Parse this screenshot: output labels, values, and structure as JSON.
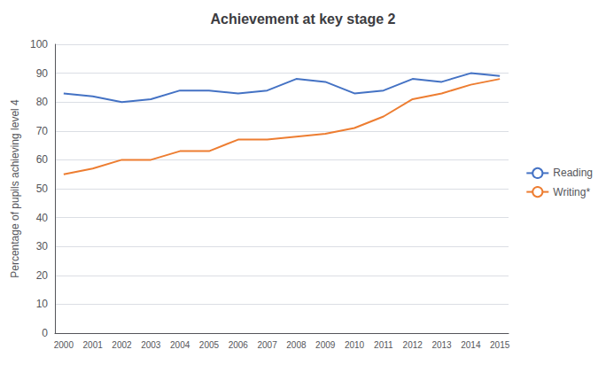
{
  "chart_data": {
    "type": "line",
    "title": "Achievement at key stage 2",
    "ylabel": "Percentage of pupils achieving level 4",
    "x": [
      2000,
      2001,
      2002,
      2003,
      2004,
      2005,
      2006,
      2007,
      2008,
      2009,
      2010,
      2011,
      2012,
      2013,
      2014,
      2015
    ],
    "series": [
      {
        "name": "Reading",
        "color": "#4472C4",
        "values": [
          83,
          82,
          80,
          81,
          84,
          84,
          83,
          84,
          88,
          87,
          83,
          84,
          88,
          87,
          90,
          89
        ]
      },
      {
        "name": "Writing*",
        "color": "#ED7D31",
        "values": [
          55,
          57,
          60,
          60,
          63,
          63,
          67,
          67,
          68,
          69,
          71,
          75,
          81,
          83,
          86,
          88
        ]
      }
    ],
    "xlim": [
      1999.7,
      2015.3
    ],
    "xticks": [
      2000,
      2001,
      2002,
      2003,
      2004,
      2005,
      2006,
      2007,
      2008,
      2009,
      2010,
      2011,
      2012,
      2013,
      2014,
      2015
    ],
    "ylim": [
      0,
      100
    ],
    "yticks": [
      0,
      10,
      20,
      30,
      40,
      50,
      60,
      70,
      80,
      90,
      100
    ],
    "grid": true,
    "legend": "right"
  }
}
